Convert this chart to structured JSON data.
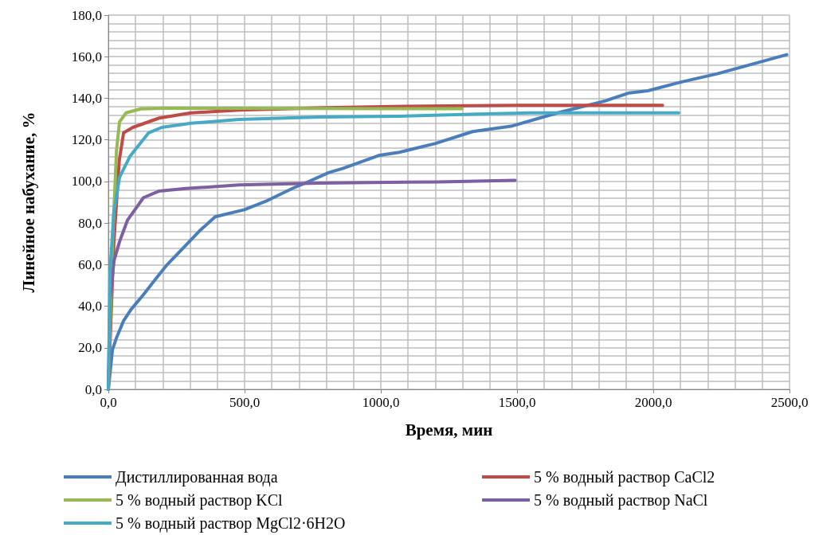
{
  "chart_data": {
    "type": "line",
    "xlabel": "Время, мин",
    "ylabel": "Линейное набухание, %",
    "xlim": [
      0,
      2500
    ],
    "ylim": [
      0,
      180
    ],
    "xticks": [
      {
        "value": 0,
        "label": "0,0"
      },
      {
        "value": 500,
        "label": "500,0"
      },
      {
        "value": 1000,
        "label": "1000,0"
      },
      {
        "value": 1500,
        "label": "1500,0"
      },
      {
        "value": 2000,
        "label": "2000,0"
      },
      {
        "value": 2500,
        "label": "2500,0"
      }
    ],
    "yticks": [
      {
        "value": 0,
        "label": "0,0"
      },
      {
        "value": 20,
        "label": "20,0"
      },
      {
        "value": 40,
        "label": "40,0"
      },
      {
        "value": 60,
        "label": "60,0"
      },
      {
        "value": 80,
        "label": "80,0"
      },
      {
        "value": 100,
        "label": "100,0"
      },
      {
        "value": 120,
        "label": "120,0"
      },
      {
        "value": 140,
        "label": "140,0"
      },
      {
        "value": 160,
        "label": "160,0"
      },
      {
        "value": 180,
        "label": "180,0"
      }
    ],
    "grid": true,
    "legend": "bottom",
    "marker": "none",
    "line_style": "solid",
    "series": [
      {
        "name": "Дистиллированная вода",
        "color": "#4a7ebb",
        "x": [
          0,
          15,
          29,
          56,
          85,
          129,
          173,
          216,
          275,
          333,
          392,
          499,
          577,
          675,
          722,
          810,
          860,
          996,
          1064,
          1201,
          1337,
          1483,
          1649,
          1825,
          1912,
          1980,
          2098,
          2235,
          2490
        ],
        "values": [
          0,
          19,
          24.5,
          33,
          38.7,
          45.6,
          53,
          60,
          68,
          76,
          83,
          86.4,
          90.4,
          96.6,
          99.2,
          104.3,
          106.2,
          112.6,
          113.9,
          118.3,
          124,
          126.7,
          133,
          138.8,
          142.6,
          143.6,
          147.7,
          151.8,
          161
        ]
      },
      {
        "name": "5 % водный раствор CaCl2",
        "color": "#be4b48",
        "x": [
          0,
          20,
          40,
          56,
          90,
          187,
          304,
          480,
          800,
          1000,
          1500,
          2034
        ],
        "values": [
          0,
          70,
          110,
          123.4,
          126,
          130.5,
          133,
          134.3,
          135.5,
          136,
          136.6,
          136.6
        ]
      },
      {
        "name": "5 % водный раствор KCl",
        "color": "#98b954",
        "x": [
          0,
          15,
          30,
          41,
          65,
          119,
          200,
          500,
          1000,
          1298
        ],
        "values": [
          0,
          70,
          115,
          128.6,
          133,
          134.9,
          135.2,
          135.2,
          135,
          135
        ]
      },
      {
        "name": "5 % водный раствор NaCl",
        "color": "#7d60a0",
        "x": [
          0,
          6,
          21,
          41,
          70,
          129,
          187,
          284,
          480,
          772,
          1211,
          1493
        ],
        "values": [
          0,
          43,
          62,
          71,
          81.3,
          92.2,
          95.4,
          96.6,
          98.3,
          99.2,
          99.8,
          100.5
        ]
      },
      {
        "name": "5 % водный раствор MgCl2·6H2O",
        "color": "#46aac5",
        "x": [
          0,
          6,
          20,
          41,
          79,
          148,
          196,
          304,
          480,
          772,
          1064,
          1357,
          1550,
          2093
        ],
        "values": [
          0,
          56,
          85,
          102,
          112,
          123.4,
          126,
          128,
          129.8,
          131,
          131.4,
          132.4,
          133,
          133
        ]
      }
    ]
  }
}
